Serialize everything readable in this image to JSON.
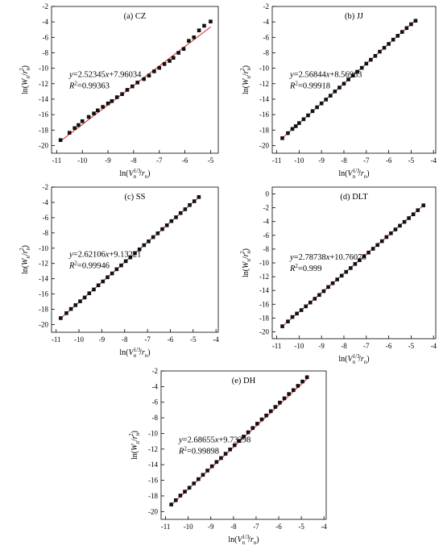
{
  "chart_data": [
    {
      "type": "scatter",
      "title": "(a) CZ",
      "equation": {
        "y": "y",
        "rhs": "=2.52345x+7.96034"
      },
      "r2": {
        "R": "R",
        "sup": "2",
        "rhs": "=0.99363"
      },
      "xlabel": {
        "pre": "ln(V",
        "sub": "n",
        "sup": "1/3",
        "post": "/r",
        "sub2": "n",
        "close": ")"
      },
      "ylabel": {
        "pre": "ln(W",
        "sub": "n",
        "post": "/r",
        "sub2": "n",
        "sup": "2",
        "close": ")"
      },
      "xlim": [
        -11.2,
        -4.7
      ],
      "ylim": [
        -21,
        -2
      ],
      "xticks": [
        -11,
        -10,
        -9,
        -8,
        -7,
        -6,
        -5
      ],
      "yticks": [
        -20,
        -18,
        -16,
        -14,
        -12,
        -10,
        -8,
        -6,
        -4,
        -2
      ],
      "fit": {
        "slope": 2.52345,
        "intercept": 7.96034,
        "x": [
          -10.85,
          -5.0
        ]
      },
      "series": [
        {
          "x": [
            -10.85,
            -10.5,
            -10.3,
            -10.15,
            -10.0,
            -9.75,
            -9.55,
            -9.4,
            -9.2,
            -9.0,
            -8.85,
            -8.65,
            -8.45,
            -8.25,
            -8.05,
            -7.85,
            -7.6,
            -7.4,
            -7.2,
            -7.0,
            -6.8,
            -6.6,
            -6.45,
            -6.25,
            -6.05,
            -5.85,
            -5.65,
            -5.45,
            -5.25,
            -5.0
          ],
          "y": [
            -19.3,
            -18.35,
            -17.75,
            -17.35,
            -16.85,
            -16.3,
            -15.85,
            -15.45,
            -15.0,
            -14.55,
            -14.25,
            -13.75,
            -13.35,
            -12.8,
            -12.35,
            -11.85,
            -11.4,
            -10.95,
            -10.4,
            -9.95,
            -9.45,
            -9.05,
            -8.65,
            -8.0,
            -7.5,
            -6.45,
            -6.0,
            -5.1,
            -4.5,
            -3.95
          ]
        }
      ]
    },
    {
      "type": "scatter",
      "title": "(b) JJ",
      "equation": {
        "y": "y",
        "rhs": "=2.56844x+8.56963"
      },
      "r2": {
        "R": "R",
        "sup": "2",
        "rhs": "=0.99918"
      },
      "xlabel": {
        "pre": "ln(V",
        "sub": "n",
        "sup": "1/3",
        "post": "/r",
        "sub2": "n",
        "close": ")"
      },
      "ylabel": {
        "pre": "ln(W",
        "sub": "n",
        "post": "/r",
        "sub2": "n",
        "sup": "2",
        "close": ")"
      },
      "xlim": [
        -11.2,
        -3.9
      ],
      "ylim": [
        -21,
        -2
      ],
      "xticks": [
        -11,
        -10,
        -9,
        -8,
        -7,
        -6,
        -5,
        -4
      ],
      "yticks": [
        -20,
        -18,
        -16,
        -14,
        -12,
        -10,
        -8,
        -6,
        -4,
        -2
      ],
      "fit": {
        "slope": 2.56844,
        "intercept": 8.56963,
        "x": [
          -10.75,
          -4.8
        ]
      },
      "series": [
        {
          "x": [
            -10.75,
            -10.5,
            -10.3,
            -10.15,
            -10.0,
            -9.8,
            -9.6,
            -9.4,
            -9.2,
            -9.0,
            -8.8,
            -8.6,
            -8.4,
            -8.2,
            -8.0,
            -7.8,
            -7.6,
            -7.4,
            -7.2,
            -7.0,
            -6.8,
            -6.6,
            -6.4,
            -6.2,
            -6.0,
            -5.8,
            -5.6,
            -5.4,
            -5.2,
            -5.0,
            -4.8
          ],
          "y": [
            -19.05,
            -18.4,
            -17.85,
            -17.5,
            -17.1,
            -16.6,
            -16.1,
            -15.55,
            -15.05,
            -14.55,
            -14.05,
            -13.55,
            -13.0,
            -12.5,
            -12.0,
            -11.45,
            -10.95,
            -10.45,
            -9.95,
            -9.4,
            -8.9,
            -8.4,
            -7.85,
            -7.35,
            -6.85,
            -6.3,
            -5.8,
            -5.3,
            -4.8,
            -4.3,
            -3.85
          ]
        }
      ]
    },
    {
      "type": "scatter",
      "title": "(c) SS",
      "equation": {
        "y": "y",
        "rhs": "=2.62106x+9.13221"
      },
      "r2": {
        "R": "R",
        "sup": "2",
        "rhs": "=0.99946"
      },
      "xlabel": {
        "pre": "ln(V",
        "sub": "n",
        "sup": "1/3",
        "post": "/r",
        "sub2": "n",
        "close": ")"
      },
      "ylabel": {
        "pre": "ln(W",
        "sub": "n",
        "post": "/r",
        "sub2": "n",
        "sup": "2",
        "close": ")"
      },
      "xlim": [
        -11.2,
        -3.9
      ],
      "ylim": [
        -21,
        -2
      ],
      "xticks": [
        -11,
        -10,
        -9,
        -8,
        -7,
        -6,
        -5,
        -4
      ],
      "yticks": [
        -20,
        -18,
        -16,
        -14,
        -12,
        -10,
        -8,
        -6,
        -4,
        -2
      ],
      "fit": {
        "slope": 2.62106,
        "intercept": 9.13221,
        "x": [
          -10.8,
          -4.75
        ]
      },
      "series": [
        {
          "x": [
            -10.8,
            -10.55,
            -10.35,
            -10.15,
            -9.95,
            -9.75,
            -9.55,
            -9.35,
            -9.15,
            -8.95,
            -8.75,
            -8.55,
            -8.35,
            -8.15,
            -7.95,
            -7.75,
            -7.55,
            -7.35,
            -7.15,
            -6.95,
            -6.75,
            -6.55,
            -6.35,
            -6.15,
            -5.95,
            -5.75,
            -5.55,
            -5.35,
            -5.15,
            -4.95,
            -4.75
          ],
          "y": [
            -19.15,
            -18.5,
            -17.95,
            -17.45,
            -16.95,
            -16.45,
            -15.9,
            -15.4,
            -14.85,
            -14.35,
            -13.8,
            -13.3,
            -12.75,
            -12.25,
            -11.7,
            -11.2,
            -10.65,
            -10.15,
            -9.6,
            -9.1,
            -8.55,
            -8.05,
            -7.5,
            -7.0,
            -6.45,
            -5.95,
            -5.4,
            -4.9,
            -4.35,
            -3.85,
            -3.3
          ]
        }
      ]
    },
    {
      "type": "scatter",
      "title": "(d) DLT",
      "equation": {
        "y": "y",
        "rhs": "=2.78738x+10.76078"
      },
      "r2": {
        "R": "R",
        "sup": "2",
        "rhs": "=0.999"
      },
      "xlabel": {
        "pre": "ln(V",
        "sub": "n",
        "sup": "1/3",
        "post": "/r",
        "sub2": "n",
        "close": ")"
      },
      "ylabel": {
        "pre": "ln(W",
        "sub": "n",
        "post": "/r",
        "sub2": "n",
        "sup": "2",
        "close": ")"
      },
      "xlim": [
        -11.2,
        -3.9
      ],
      "ylim": [
        -21,
        1
      ],
      "xticks": [
        -11,
        -10,
        -9,
        -8,
        -7,
        -6,
        -5,
        -4
      ],
      "yticks": [
        -20,
        -18,
        -16,
        -14,
        -12,
        -10,
        -8,
        -6,
        -4,
        -2,
        0
      ],
      "fit": {
        "slope": 2.78738,
        "intercept": 10.76078,
        "x": [
          -10.75,
          -4.45
        ]
      },
      "series": [
        {
          "x": [
            -10.75,
            -10.5,
            -10.3,
            -10.1,
            -9.9,
            -9.7,
            -9.5,
            -9.3,
            -9.1,
            -8.9,
            -8.7,
            -8.5,
            -8.3,
            -8.1,
            -7.9,
            -7.7,
            -7.5,
            -7.3,
            -7.1,
            -6.9,
            -6.7,
            -6.5,
            -6.3,
            -6.1,
            -5.9,
            -5.7,
            -5.5,
            -5.3,
            -5.1,
            -4.9,
            -4.7,
            -4.45
          ],
          "y": [
            -19.2,
            -18.5,
            -17.85,
            -17.35,
            -16.85,
            -16.3,
            -15.75,
            -15.2,
            -14.65,
            -14.1,
            -13.5,
            -12.95,
            -12.4,
            -11.85,
            -11.3,
            -10.75,
            -10.15,
            -9.6,
            -9.05,
            -8.5,
            -7.95,
            -7.4,
            -6.85,
            -6.25,
            -5.7,
            -5.15,
            -4.6,
            -4.05,
            -3.5,
            -2.95,
            -2.35,
            -1.65
          ]
        }
      ]
    },
    {
      "type": "scatter",
      "title": "(e) DH",
      "equation": {
        "y": "y",
        "rhs": "=2.68655x+9.73298"
      },
      "r2": {
        "R": "R",
        "sup": "2",
        "rhs": "=0.99898"
      },
      "xlabel": {
        "pre": "ln(V",
        "sub": "n",
        "sup": "1/3",
        "post": "/r",
        "sub2": "n",
        "close": ")"
      },
      "ylabel": {
        "pre": "ln(W",
        "sub": "n",
        "post": "/r",
        "sub2": "n",
        "sup": "2",
        "close": ")"
      },
      "xlim": [
        -11.2,
        -3.9
      ],
      "ylim": [
        -21,
        -2
      ],
      "xticks": [
        -11,
        -10,
        -9,
        -8,
        -7,
        -6,
        -5,
        -4
      ],
      "yticks": [
        -20,
        -18,
        -16,
        -14,
        -12,
        -10,
        -8,
        -6,
        -4,
        -2
      ],
      "fit": {
        "slope": 2.68655,
        "intercept": 9.73298,
        "x": [
          -10.75,
          -4.75
        ]
      },
      "series": [
        {
          "x": [
            -10.75,
            -10.55,
            -10.35,
            -10.15,
            -9.95,
            -9.75,
            -9.55,
            -9.35,
            -9.15,
            -8.95,
            -8.75,
            -8.55,
            -8.35,
            -8.15,
            -7.95,
            -7.75,
            -7.55,
            -7.35,
            -7.15,
            -6.95,
            -6.75,
            -6.55,
            -6.35,
            -6.15,
            -5.95,
            -5.75,
            -5.55,
            -5.35,
            -5.15,
            -4.95,
            -4.75
          ],
          "y": [
            -19.1,
            -18.55,
            -17.95,
            -17.45,
            -16.95,
            -16.4,
            -15.85,
            -15.3,
            -14.75,
            -14.2,
            -13.65,
            -13.15,
            -12.6,
            -12.05,
            -11.5,
            -10.95,
            -10.4,
            -9.85,
            -9.3,
            -8.75,
            -8.2,
            -7.7,
            -7.15,
            -6.6,
            -6.05,
            -5.5,
            -4.95,
            -4.45,
            -3.9,
            -3.35,
            -2.8
          ]
        }
      ]
    }
  ],
  "colors": {
    "fit_line": "#e0201b",
    "marker": "#111111",
    "axis": "#000000"
  }
}
